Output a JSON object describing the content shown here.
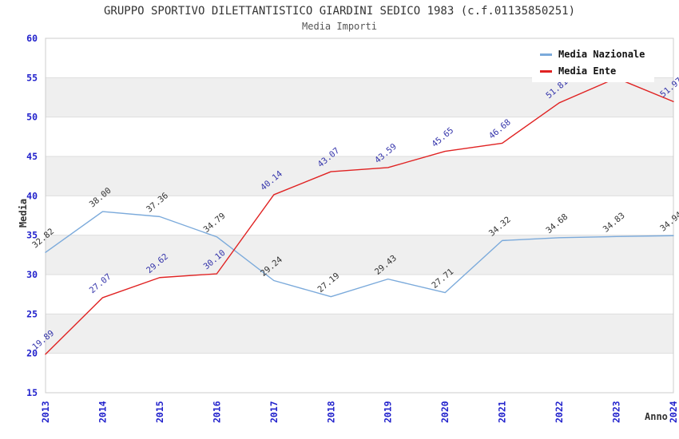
{
  "chart_data": {
    "type": "line",
    "title": "GRUPPO SPORTIVO DILETTANTISTICO GIARDINI SEDICO 1983 (c.f.01135850251)",
    "subtitle": "Media Importi",
    "xlabel": "Anno",
    "ylabel": "Media",
    "ylim": [
      15,
      60
    ],
    "yticks": [
      15,
      20,
      25,
      30,
      35,
      40,
      45,
      50,
      55,
      60
    ],
    "grid": "alternating gray horizontal bands every 5 units, light gridlines",
    "legend_position": "top-right-inside",
    "categories": [
      "2013",
      "2014",
      "2015",
      "2016",
      "2017",
      "2018",
      "2019",
      "2020",
      "2021",
      "2022",
      "2023",
      "2024"
    ],
    "series": [
      {
        "name": "Media Nazionale",
        "color": "#7BAADB",
        "label_color": "#333333",
        "values": [
          32.82,
          38.0,
          37.36,
          34.79,
          29.24,
          27.19,
          29.43,
          27.71,
          34.32,
          34.68,
          34.83,
          34.94
        ],
        "point_labels": [
          "32.82",
          "38.00",
          "37.36",
          "34.79",
          "29.24",
          "27.19",
          "29.43",
          "27.71",
          "34.32",
          "34.68",
          "34.83",
          "34.94"
        ]
      },
      {
        "name": "Media Ente",
        "color": "#E02222",
        "label_color": "#3333AA",
        "values": [
          19.89,
          27.07,
          29.62,
          30.1,
          40.14,
          43.07,
          43.59,
          45.65,
          46.68,
          51.81,
          54.95,
          51.97
        ],
        "point_labels": [
          "19.89",
          "27.07",
          "29.62",
          "30.10",
          "40.14",
          "43.07",
          "43.59",
          "45.65",
          "46.68",
          "51.81",
          "",
          "51.97"
        ]
      }
    ],
    "colors": {
      "axis_tick": "#2222CC",
      "band": "#EFEFEF",
      "gridline": "#DEDEDE",
      "border": "#CCCCCC",
      "title": "#333333",
      "subtitle": "#555555"
    }
  }
}
